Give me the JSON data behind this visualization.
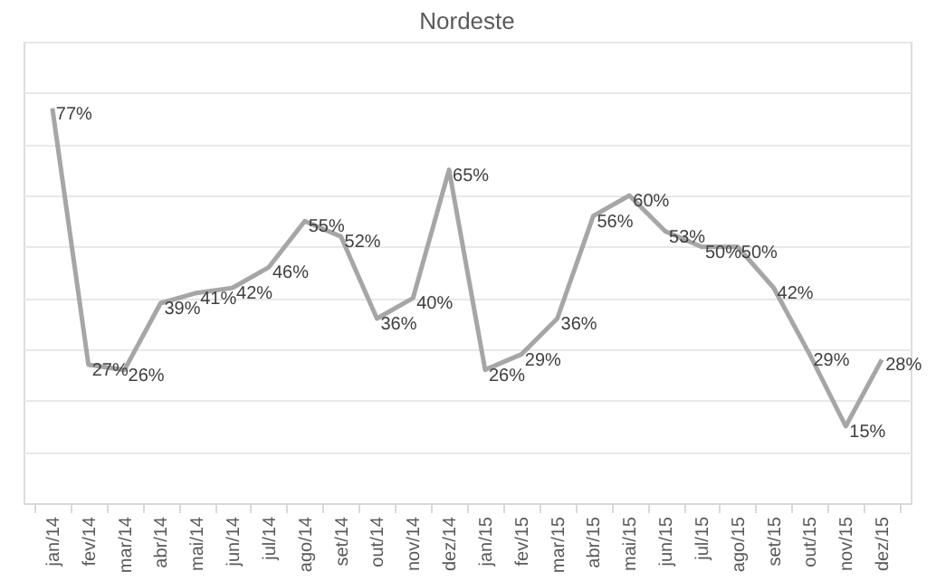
{
  "chart_data": {
    "type": "line",
    "title": "Nordeste",
    "categories": [
      "jan/14",
      "fev/14",
      "mar/14",
      "abr/14",
      "mai/14",
      "jun/14",
      "jul/14",
      "ago/14",
      "set/14",
      "out/14",
      "nov/14",
      "dez/14",
      "jan/15",
      "fev/15",
      "mar/15",
      "abr/15",
      "mai/15",
      "jun/15",
      "jul/15",
      "ago/15",
      "set/15",
      "out/15",
      "nov/15",
      "dez/15"
    ],
    "series": [
      {
        "color": "#a6a6a6",
        "values": [
          77,
          27,
          26,
          39,
          41,
          42,
          46,
          55,
          52,
          36,
          40,
          65,
          26,
          29,
          36,
          56,
          60,
          53,
          50,
          50,
          42,
          29,
          15,
          28
        ],
        "value_labels": [
          "77%",
          "27%",
          "26%",
          "39%",
          "41%",
          "42%",
          "46%",
          "55%",
          "52%",
          "36%",
          "40%",
          "65%",
          "26%",
          "29%",
          "36%",
          "56%",
          "60%",
          "53%",
          "50%",
          "50%",
          "42%",
          "29%",
          "15%",
          "28%"
        ]
      }
    ],
    "ylim": [
      0,
      90
    ],
    "grid": "y",
    "tick_labels": "x",
    "marker": "none",
    "line_style": "solid"
  }
}
